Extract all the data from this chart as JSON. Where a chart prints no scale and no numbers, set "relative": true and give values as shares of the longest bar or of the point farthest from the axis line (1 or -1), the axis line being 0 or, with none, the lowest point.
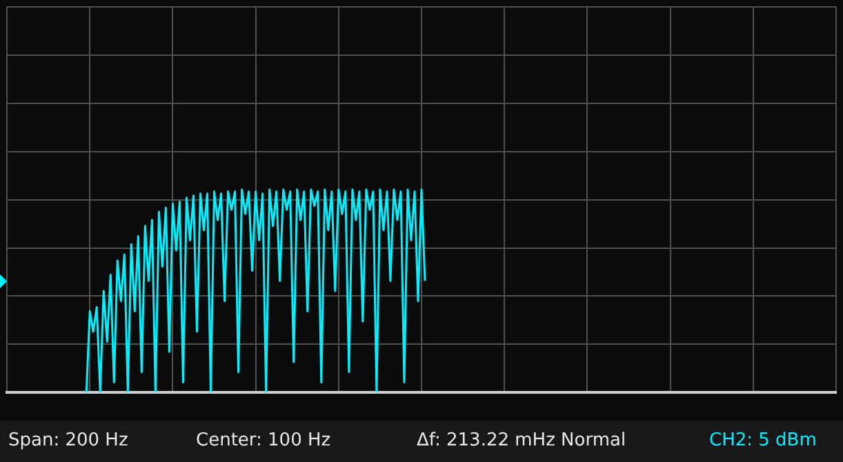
{
  "chart_data": {
    "type": "line",
    "relative": true,
    "grid": true,
    "legend": false,
    "categories": [
      null,
      null,
      null,
      null,
      null,
      null,
      null,
      null,
      null,
      null,
      null,
      null,
      null,
      null,
      null,
      null,
      null,
      null,
      null,
      null,
      null,
      null,
      null,
      null,
      null,
      null,
      null,
      null,
      null,
      null,
      null,
      null,
      null,
      null,
      null,
      null,
      null,
      null,
      null,
      null,
      null,
      null,
      null,
      null,
      null,
      null,
      null,
      null,
      null,
      null,
      null,
      null,
      null,
      null,
      null,
      null,
      null,
      null,
      null,
      null,
      null,
      null,
      null,
      null,
      null,
      null,
      null,
      null,
      null,
      null,
      null,
      null,
      null,
      null,
      null,
      null,
      null,
      null,
      null,
      null,
      null,
      null,
      null,
      null,
      null,
      null,
      null,
      null,
      null,
      null,
      null,
      null,
      null,
      null,
      null,
      null,
      null,
      null,
      null,
      null,
      null,
      null,
      null,
      null,
      null,
      null,
      null,
      null,
      null,
      null,
      null,
      null,
      null,
      null,
      null,
      null,
      null,
      null,
      null,
      null,
      null,
      null,
      null,
      null,
      null,
      null,
      null,
      null,
      null,
      null,
      null,
      null,
      null,
      null,
      null,
      null,
      null,
      null,
      null,
      null,
      null,
      null,
      null,
      null,
      null,
      null,
      null,
      null,
      null,
      null,
      null,
      null,
      null,
      null,
      null,
      null,
      null,
      null,
      null,
      null,
      null,
      null,
      null,
      null,
      null,
      null,
      null,
      null,
      null,
      null,
      null,
      null,
      null,
      null,
      null,
      null,
      null,
      null,
      null,
      null,
      null,
      null,
      null,
      null,
      null,
      null,
      null,
      null,
      null,
      null,
      null,
      null,
      null,
      null,
      null,
      null,
      null,
      null,
      null,
      null,
      null,
      null,
      null,
      null,
      null,
      null,
      null,
      null,
      null,
      null,
      null,
      null,
      null,
      null,
      null,
      null,
      null,
      null,
      null,
      null,
      null,
      null,
      null,
      null,
      null,
      null,
      null,
      null,
      null,
      null,
      null,
      null,
      null,
      null,
      null,
      null,
      null,
      null,
      null,
      null,
      null
    ],
    "series": [
      {
        "color": "#00f0ff",
        "values": [
          null,
          null,
          null,
          null,
          null,
          null,
          null,
          null,
          null,
          null,
          null,
          null,
          null,
          null,
          null,
          null,
          null,
          null,
          null,
          null,
          null,
          null,
          null,
          0,
          0.4,
          0.3,
          0.42,
          0,
          0.5,
          0.25,
          0.58,
          0.05,
          0.65,
          0.45,
          0.68,
          0,
          0.73,
          0.4,
          0.77,
          0.1,
          0.82,
          0.55,
          0.85,
          0,
          0.89,
          0.62,
          0.91,
          0.2,
          0.93,
          0.7,
          0.94,
          0.05,
          0.96,
          0.75,
          0.97,
          0.3,
          0.98,
          0.8,
          0.98,
          0,
          0.99,
          0.85,
          0.98,
          0.45,
          0.99,
          0.9,
          0.99,
          0.1,
          1.0,
          0.88,
          0.99,
          0.6,
          0.99,
          0.75,
          0.98,
          0,
          1.0,
          0.82,
          0.99,
          0.55,
          1.0,
          0.9,
          0.99,
          0.15,
          1.0,
          0.85,
          0.99,
          0.4,
          1.0,
          0.92,
          0.99,
          0.05,
          1.0,
          0.8,
          0.99,
          0.5,
          1.0,
          0.88,
          0.99,
          0.1,
          1.0,
          0.85,
          0.99,
          0.35,
          1.0,
          0.9,
          0.99,
          0,
          1.0,
          0.8,
          0.99,
          0.55,
          1.0,
          0.85,
          0.99,
          0.05,
          1.0,
          0.75,
          0.99,
          0.45,
          1.0,
          0.55,
          null,
          null,
          null,
          null,
          null,
          null,
          null,
          null,
          null,
          null,
          null,
          null,
          null,
          null,
          null,
          null,
          null,
          null,
          null,
          null,
          null,
          null,
          null,
          null,
          null,
          null,
          null,
          null,
          null,
          null,
          null,
          null,
          null,
          null,
          null,
          null,
          null,
          null,
          null,
          null,
          null,
          null,
          null,
          null,
          null,
          null,
          null,
          null,
          null,
          null,
          null,
          null,
          null,
          null,
          null,
          null,
          null,
          null,
          null,
          null,
          null,
          null,
          null,
          null,
          null,
          null,
          null,
          null,
          null,
          null,
          null,
          null,
          null,
          null,
          null,
          null,
          null,
          null,
          null,
          null,
          null,
          null,
          null,
          null,
          null,
          null,
          null,
          null,
          null,
          null,
          null,
          null,
          null,
          null,
          null,
          null,
          null,
          null,
          null,
          null,
          null,
          null,
          null,
          null,
          null,
          null,
          null,
          null,
          null,
          null,
          null,
          null,
          null,
          null,
          null,
          null,
          null,
          null,
          null
        ]
      }
    ],
    "annotations": [
      "Span: 200 Hz",
      "Center: 100 Hz",
      "Δf: 213.22 mHz Normal",
      "CH2: 5 dBm"
    ]
  }
}
